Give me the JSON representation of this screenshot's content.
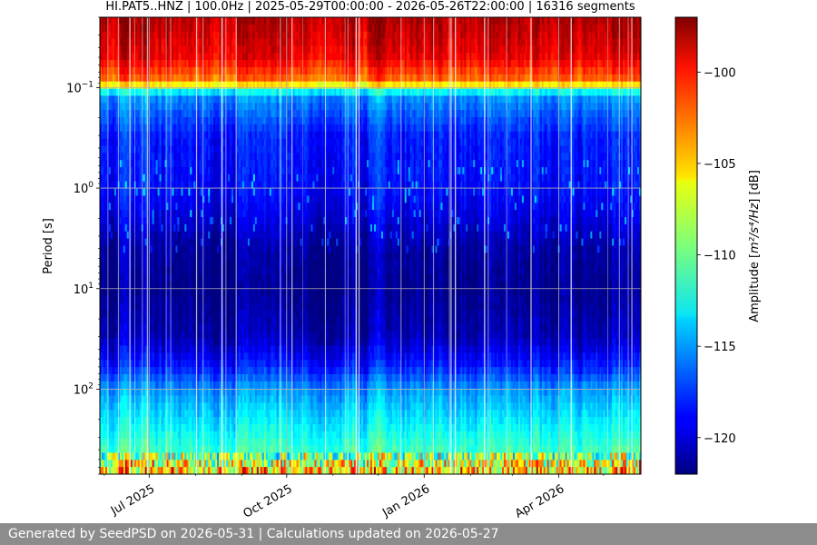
{
  "chart_data": {
    "type": "heatmap",
    "title": "HI.PAT5..HNZ | 100.0Hz | 2025-05-29T00:00:00 - 2026-05-26T22:00:00 | 16316 segments",
    "ylabel": "Period [s]",
    "xlabel": "",
    "y_scale": "log",
    "y_inverted": true,
    "y_range": [
      0.02,
      700
    ],
    "x_range": [
      "2025-05-29",
      "2026-05-26"
    ],
    "x_ticks": [
      {
        "date": "2025-07-01",
        "label": "Jul 2025"
      },
      {
        "date": "2025-10-01",
        "label": "Oct 2025"
      },
      {
        "date": "2026-01-01",
        "label": "Jan 2026"
      },
      {
        "date": "2026-04-01",
        "label": "Apr 2026"
      }
    ],
    "y_ticks": [
      {
        "value": 0.1,
        "base": "10",
        "exponent": "−1"
      },
      {
        "value": 1,
        "base": "10",
        "exponent": "0"
      },
      {
        "value": 10,
        "base": "10",
        "exponent": "1"
      },
      {
        "value": 100,
        "base": "10",
        "exponent": "2"
      }
    ],
    "grid": true,
    "colormap": "jet",
    "colorbar": {
      "label_prefix": "Amplitude [",
      "label_unit": "m²/s⁴/Hz",
      "label_suffix": "] [dB]",
      "range": [
        -122,
        -97
      ],
      "ticks": [
        {
          "value": -100,
          "label": "−100"
        },
        {
          "value": -105,
          "label": "−105"
        },
        {
          "value": -110,
          "label": "−110"
        },
        {
          "value": -115,
          "label": "−115"
        },
        {
          "value": -120,
          "label": "−120"
        }
      ]
    },
    "approx_median_profile": {
      "period_s": [
        0.02,
        0.05,
        0.09,
        0.1,
        0.12,
        0.3,
        1,
        2,
        4,
        10,
        30,
        60,
        100,
        200,
        400,
        500,
        700
      ],
      "amplitude_db": [
        -98,
        -99.5,
        -103,
        -109,
        -115,
        -118,
        -118.5,
        -119.5,
        -121,
        -121.5,
        -120.5,
        -118,
        -115,
        -113,
        -111,
        -108,
        -104
      ]
    }
  },
  "footer": {
    "text": "Generated by SeedPSD on 2026-05-31 | Calculations updated on 2026-05-27"
  }
}
